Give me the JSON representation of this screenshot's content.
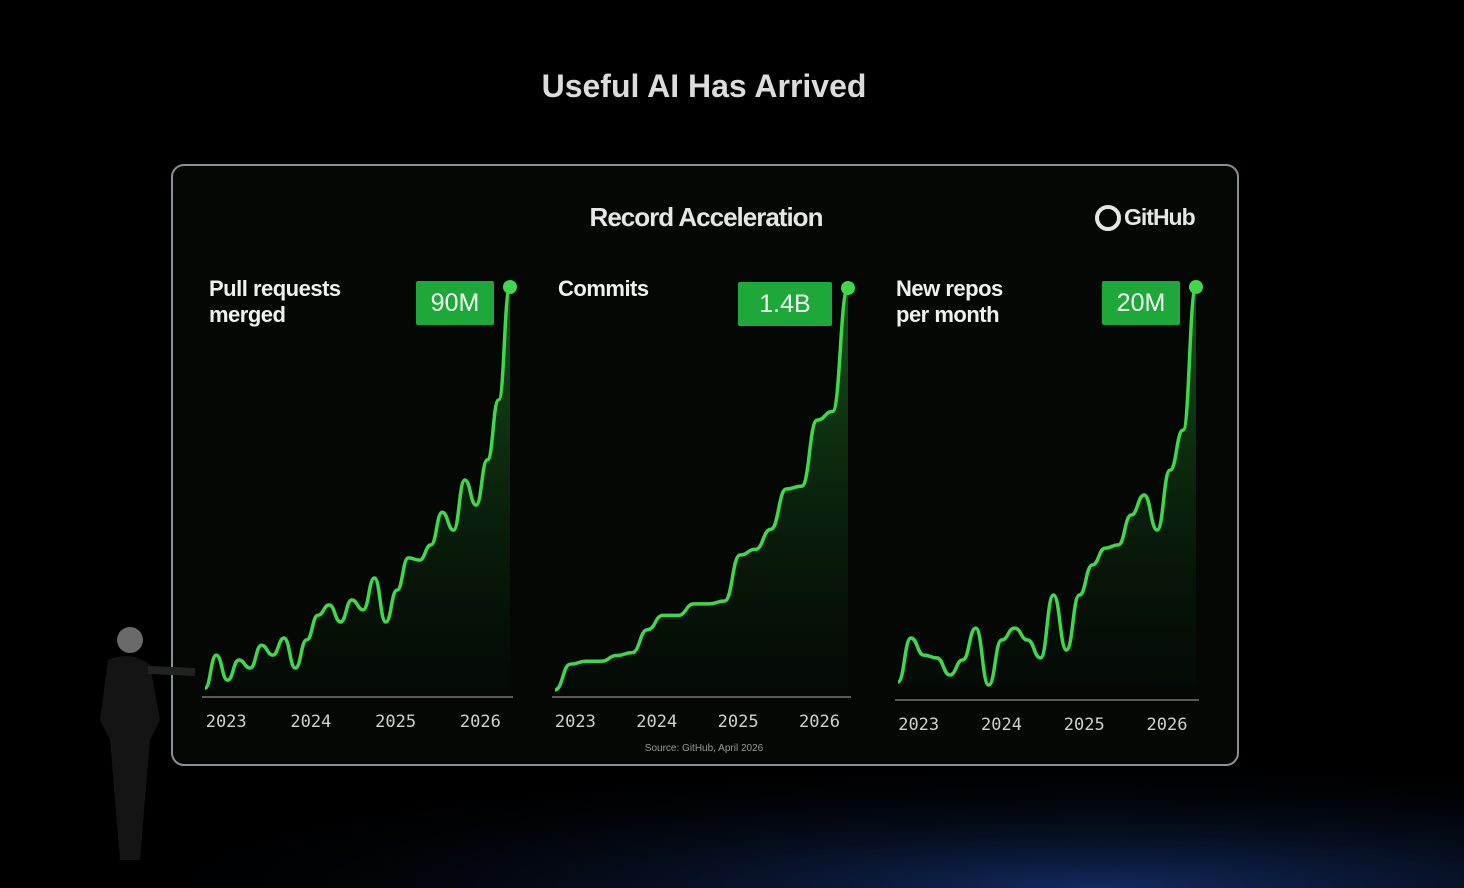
{
  "title": "Useful AI Has Arrived",
  "panel_title": "Record Acceleration",
  "logo": "GitHub",
  "source": "Source: GitHub, April 2026",
  "chart_data": [
    {
      "type": "line",
      "title": "Pull requests\nmerged",
      "color": "#3fd84a",
      "values": [
        0.4,
        7.8,
        2.2,
        6.7,
        4.9,
        10,
        7.8,
        11.6,
        4.9,
        11.2,
        16.7,
        19,
        15.2,
        20.1,
        17.9,
        25,
        15.2,
        22.3,
        29.5,
        29,
        32.4,
        39.7,
        35.7,
        46.9,
        41.3,
        51.4,
        64.8,
        90
      ],
      "value_labels": [
        null,
        null,
        null,
        null,
        null,
        null,
        null,
        null,
        null,
        null,
        null,
        null,
        null,
        null,
        null,
        null,
        null,
        null,
        null,
        null,
        null,
        null,
        null,
        null,
        null,
        null,
        null,
        "90M"
      ],
      "ylim": [
        0,
        90
      ],
      "xlim": [
        2022.75,
        2026.35
      ],
      "xticks": [
        2023,
        2024,
        2025,
        2026
      ]
    },
    {
      "type": "line",
      "title": "Commits",
      "color": "#3fd84a",
      "values": [
        0,
        0.09,
        0.1,
        0.1,
        0.12,
        0.13,
        0.21,
        0.26,
        0.26,
        0.3,
        0.3,
        0.31,
        0.47,
        0.49,
        0.56,
        0.7,
        0.71,
        0.94,
        0.97,
        1.4
      ],
      "value_labels": [
        null,
        null,
        null,
        null,
        null,
        null,
        null,
        null,
        null,
        null,
        null,
        null,
        null,
        null,
        null,
        null,
        null,
        null,
        null,
        "1.4B"
      ],
      "ylim": [
        0,
        1.4
      ],
      "xlim": [
        2022.75,
        2026.35
      ],
      "xticks": [
        2023,
        2024,
        2025,
        2026
      ]
    },
    {
      "type": "line",
      "title": "New repos\nper month",
      "color": "#3fd84a",
      "values": [
        0.15,
        2.36,
        1.5,
        1.36,
        0.5,
        1.26,
        2.86,
        0,
        2.26,
        2.86,
        2.26,
        1.36,
        4.52,
        1.76,
        4.52,
        6.03,
        6.88,
        7.04,
        8.54,
        9.55,
        7.79,
        10.8,
        12.81,
        20
      ],
      "value_labels": [
        null,
        null,
        null,
        null,
        null,
        null,
        null,
        null,
        null,
        null,
        null,
        null,
        null,
        null,
        null,
        null,
        null,
        null,
        null,
        null,
        null,
        null,
        null,
        "20M"
      ],
      "ylim": [
        0,
        20
      ],
      "xlim": [
        2022.75,
        2026.35
      ],
      "xticks": [
        2023,
        2024,
        2025,
        2026
      ]
    }
  ]
}
